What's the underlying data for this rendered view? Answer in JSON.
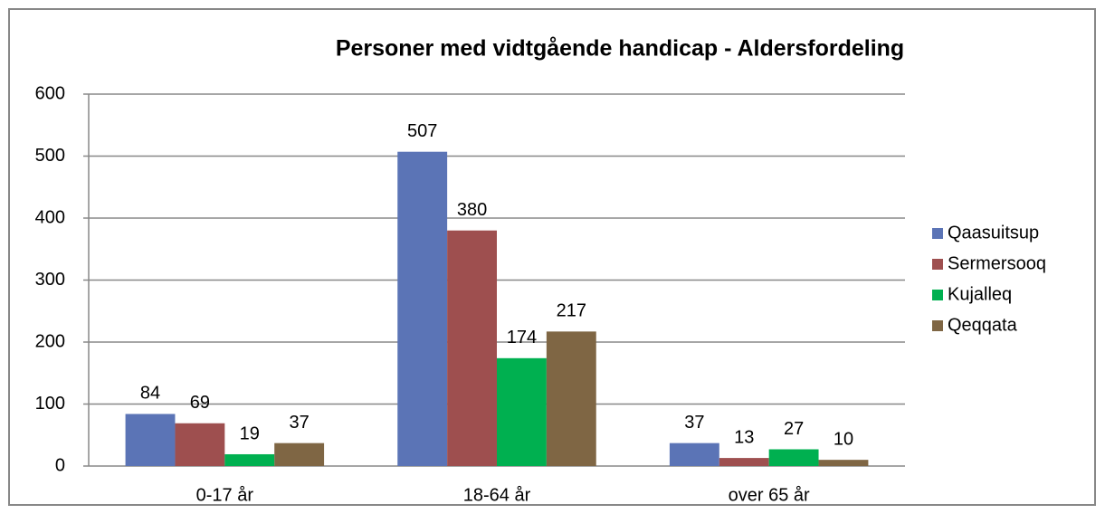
{
  "chart_data": {
    "type": "bar",
    "title": "Personer med vidtgående handicap - Aldersfordeling",
    "categories": [
      "0-17 år",
      "18-64 år",
      "over 65 år"
    ],
    "series": [
      {
        "name": "Qaasuitsup",
        "color": "#5b74b6",
        "values": [
          84,
          507,
          37
        ]
      },
      {
        "name": "Sermersooq",
        "color": "#9e4f4f",
        "values": [
          69,
          380,
          13
        ]
      },
      {
        "name": "Kujalleq",
        "color": "#00b050",
        "values": [
          19,
          174,
          27
        ]
      },
      {
        "name": "Qeqqata",
        "color": "#7f6644",
        "values": [
          37,
          217,
          10
        ]
      }
    ],
    "ylim": [
      0,
      600
    ],
    "yticks": [
      0,
      100,
      200,
      300,
      400,
      500,
      600
    ],
    "grid": true,
    "legend": "right"
  }
}
